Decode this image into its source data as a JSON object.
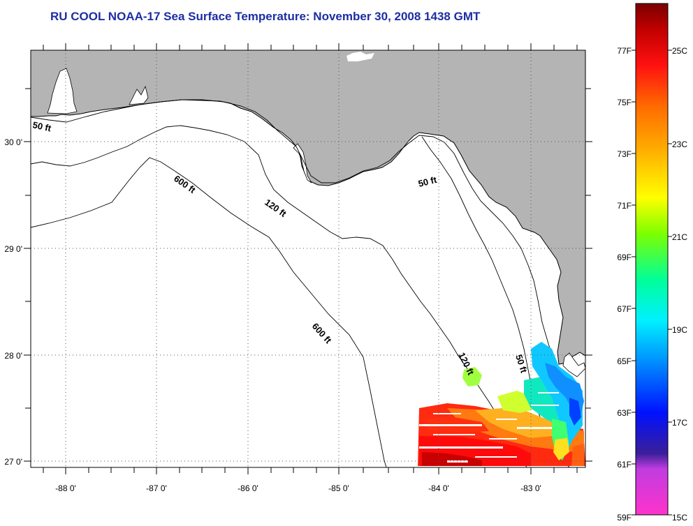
{
  "header": {
    "title": "RU COOL  NOAA-17  Sea Surface Temperature:  November 30, 2008 1438 GMT"
  },
  "map": {
    "longitude_ticks": [
      "-88 0'",
      "-87 0'",
      "-86 0'",
      "-85 0'",
      "-84 0'",
      "-83 0'"
    ],
    "latitude_ticks": [
      "30 0'",
      "29 0'",
      "28 0'",
      "27 0'"
    ],
    "isobath_labels": [
      "50 ft",
      "600 ft",
      "120 ft",
      "50 ft",
      "600 ft",
      "120 ft",
      "50 ft"
    ],
    "colors": {
      "land": "#b4b4b4",
      "water": "#ffffff",
      "title": "#1c2ea3",
      "grid": "#555555"
    }
  },
  "colorbar": {
    "fahrenheit_labels": [
      "77F",
      "75F",
      "73F",
      "71F",
      "69F",
      "67F",
      "65F",
      "63F",
      "61F",
      "59F"
    ],
    "celsius_labels": [
      "25C",
      "23C",
      "21C",
      "19C",
      "17C",
      "15C"
    ],
    "range_f": [
      59,
      79
    ],
    "range_c": [
      15,
      26
    ]
  }
}
